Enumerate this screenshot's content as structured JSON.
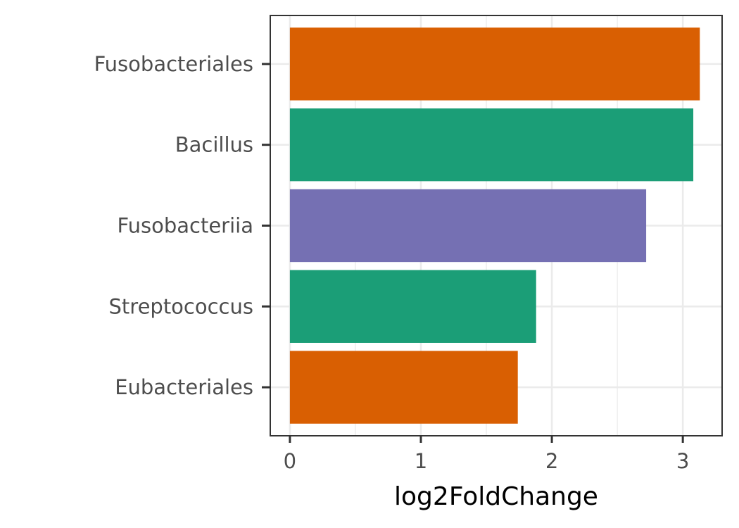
{
  "chart_data": {
    "type": "bar",
    "orientation": "horizontal",
    "categories": [
      "Fusobacteriales",
      "Bacillus",
      "Fusobacteriia",
      "Streptococcus",
      "Eubacteriales"
    ],
    "values": [
      3.13,
      3.08,
      2.72,
      1.88,
      1.74
    ],
    "colors": [
      "#D95F02",
      "#1B9E77",
      "#7570B3",
      "#1B9E77",
      "#D95F02"
    ],
    "xlabel": "log2FoldChange",
    "ylabel": "",
    "xlim": [
      -0.15,
      3.3
    ],
    "xticks": [
      0,
      1,
      2,
      3
    ],
    "xtick_labels": [
      "0",
      "1",
      "2",
      "3"
    ],
    "minor_xticks": [
      0.5,
      1.5,
      2.5
    ],
    "grid": true,
    "legend": "none"
  }
}
